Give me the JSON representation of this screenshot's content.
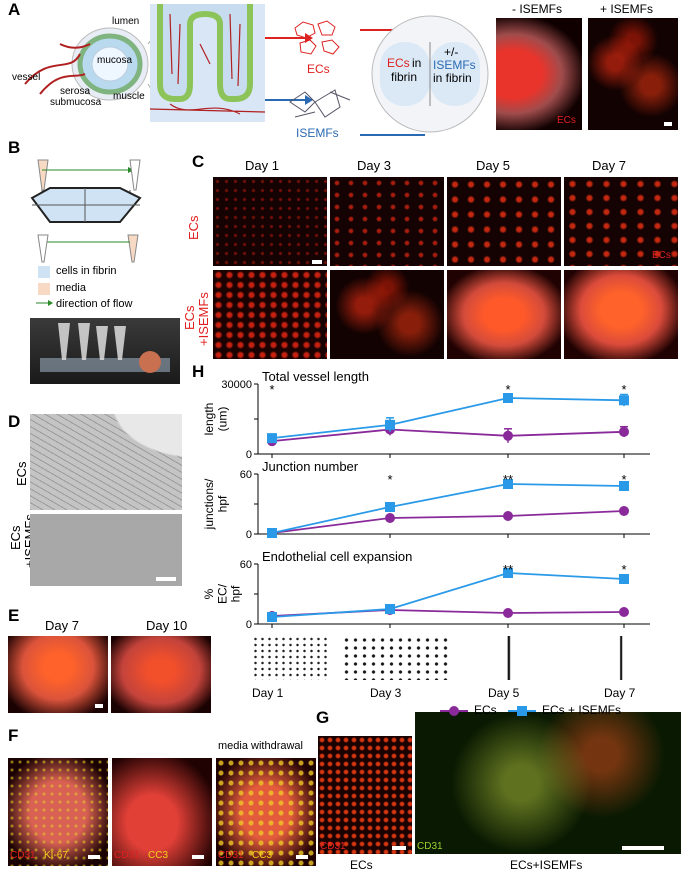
{
  "panelA": {
    "label": "A",
    "diagram_labels": {
      "lumen": "lumen",
      "mucosa": "mucosa",
      "vessel": "vessel",
      "serosa": "serosa",
      "submucosa": "submucosa",
      "muscle": "muscle"
    },
    "ecs": "ECs",
    "isemfs": "ISEMFs",
    "chamber_left_1": "ECs",
    "chamber_left_2": "in",
    "chamber_left_3": "fibrin",
    "chamber_right_1": "+/-",
    "chamber_right_2": "ISEMFs",
    "chamber_right_3": "in fibrin",
    "minus": "- ISEMFs",
    "plus": "+ ISEMFs",
    "img_label": "ECs"
  },
  "panelB": {
    "label": "B",
    "legend": [
      {
        "text": "cells in fibrin",
        "color": "#cfe3f5"
      },
      {
        "text": "media",
        "color": "#f7d9c4"
      },
      {
        "text": "direction of flow",
        "color": "#2a8a2a"
      }
    ]
  },
  "panelC": {
    "label": "C",
    "days": [
      "Day 1",
      "Day 3",
      "Day 5",
      "Day 7"
    ],
    "row1": "ECs",
    "row2a": "ECs",
    "row2b": "+ISEMFs",
    "inset": "ECs"
  },
  "panelD": {
    "label": "D",
    "row1": "ECs",
    "row2a": "ECs",
    "row2b": "+ISEMFs"
  },
  "panelE": {
    "label": "E",
    "days": [
      "Day 7",
      "Day 10"
    ]
  },
  "panelF": {
    "label": "F",
    "title": "media withdrawal",
    "imgs": [
      {
        "a": "CD31",
        "b": "KI-67"
      },
      {
        "a": "CD31",
        "b": "CC3"
      },
      {
        "a": "CD31",
        "b": "CC3"
      }
    ]
  },
  "panelG": {
    "label": "G",
    "tag1": "CD31",
    "tag2": "CD31",
    "cap1": "ECs",
    "cap2": "ECs+ISEMFs"
  },
  "panelH": {
    "label": "H",
    "legend": [
      {
        "text": "ECs",
        "color": "#8a2a9a"
      },
      {
        "text": "ECs + ISEMFs",
        "color": "#2a9ae8"
      }
    ]
  },
  "chart_data": [
    {
      "type": "line",
      "title": "Total vessel length",
      "ylabel": "length (um)",
      "x": [
        "Day 1",
        "Day 3",
        "Day 5",
        "Day 7"
      ],
      "ylim": [
        0,
        30000
      ],
      "yticks": [
        "30000",
        "15000",
        "0"
      ],
      "series": [
        {
          "name": "ECs",
          "color": "#8a2a9a",
          "values": [
            5500,
            10500,
            7800,
            9500
          ],
          "err": [
            600,
            2500,
            3000,
            2200
          ]
        },
        {
          "name": "ECs + ISEMFs",
          "color": "#2a9ae8",
          "values": [
            6800,
            12500,
            24000,
            23000
          ],
          "err": [
            600,
            3000,
            1200,
            2500
          ]
        }
      ],
      "sig": [
        "*",
        "",
        "*",
        "*"
      ]
    },
    {
      "type": "line",
      "title": "Junction number",
      "ylabel": "junctions/ hpf",
      "x": [
        "Day 1",
        "Day 3",
        "Day 5",
        "Day 7"
      ],
      "ylim": [
        0,
        60
      ],
      "yticks": [
        "60",
        "30",
        "0"
      ],
      "series": [
        {
          "name": "ECs",
          "color": "#8a2a9a",
          "values": [
            1,
            16,
            18,
            23
          ],
          "err": [
            0,
            1,
            1,
            1
          ]
        },
        {
          "name": "ECs + ISEMFs",
          "color": "#2a9ae8",
          "values": [
            1,
            27,
            50,
            48
          ],
          "err": [
            0,
            1,
            2,
            2
          ]
        }
      ],
      "sig": [
        "",
        "*",
        "**",
        "*"
      ]
    },
    {
      "type": "line",
      "title": "Endothelial cell expansion",
      "ylabel": "% EC/ hpf",
      "x": [
        "Day 1",
        "Day 3",
        "Day 5",
        "Day 7"
      ],
      "ylim": [
        0,
        60
      ],
      "yticks": [
        "60",
        "30",
        "0"
      ],
      "series": [
        {
          "name": "ECs",
          "color": "#8a2a9a",
          "values": [
            8,
            14,
            11,
            12
          ],
          "err": [
            1,
            1,
            1,
            1
          ]
        },
        {
          "name": "ECs + ISEMFs",
          "color": "#2a9ae8",
          "values": [
            7,
            15,
            51,
            45
          ],
          "err": [
            1,
            1,
            2,
            3
          ]
        }
      ],
      "sig": [
        "",
        "",
        "**",
        "*"
      ]
    }
  ]
}
